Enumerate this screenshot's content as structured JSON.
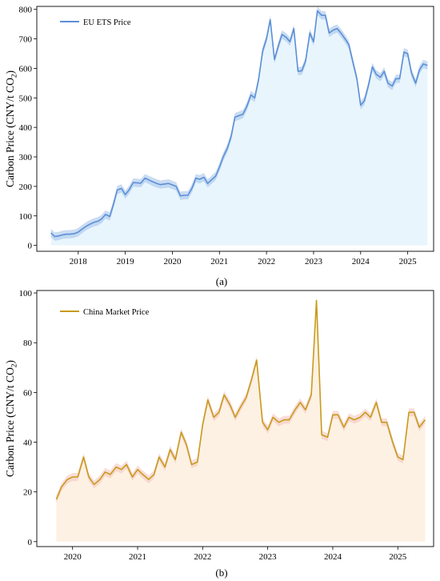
{
  "chart_data": [
    {
      "type": "area",
      "caption": "(a)",
      "ylabel": "Carbon Price (CNY/t CO2)",
      "ylabel_main": "Carbon Price (CNY/t CO",
      "ylabel_sub": "2",
      "ylabel_end": ")",
      "xlabel": "",
      "ylim": [
        -20,
        810
      ],
      "xlim": [
        2017.12,
        2025.55
      ],
      "yticks": [
        0,
        100,
        200,
        300,
        400,
        500,
        600,
        700,
        800
      ],
      "xticks": [
        "2018",
        "2019",
        "2020",
        "2021",
        "2022",
        "2023",
        "2024",
        "2025"
      ],
      "grid": false,
      "legend_position": "top-left",
      "line_color": "#5b8fd6",
      "band_color": "#9fc0ea",
      "fill_color": "#e9f5fc",
      "series": [
        {
          "name": "EU ETS Price",
          "x": [
            2017.42,
            2017.5,
            2017.58,
            2017.67,
            2017.75,
            2017.83,
            2017.92,
            2018.0,
            2018.08,
            2018.17,
            2018.25,
            2018.33,
            2018.42,
            2018.5,
            2018.58,
            2018.67,
            2018.75,
            2018.83,
            2018.92,
            2019.0,
            2019.08,
            2019.17,
            2019.25,
            2019.33,
            2019.42,
            2019.5,
            2019.58,
            2019.67,
            2019.75,
            2019.83,
            2019.92,
            2020.0,
            2020.08,
            2020.17,
            2020.25,
            2020.33,
            2020.42,
            2020.5,
            2020.58,
            2020.67,
            2020.75,
            2020.83,
            2020.92,
            2021.0,
            2021.08,
            2021.17,
            2021.25,
            2021.33,
            2021.42,
            2021.5,
            2021.58,
            2021.67,
            2021.75,
            2021.83,
            2021.92,
            2022.0,
            2022.08,
            2022.17,
            2022.25,
            2022.33,
            2022.42,
            2022.5,
            2022.58,
            2022.67,
            2022.75,
            2022.83,
            2022.92,
            2023.0,
            2023.08,
            2023.17,
            2023.25,
            2023.33,
            2023.42,
            2023.5,
            2023.58,
            2023.67,
            2023.75,
            2023.83,
            2023.92,
            2024.0,
            2024.08,
            2024.17,
            2024.25,
            2024.33,
            2024.42,
            2024.5,
            2024.58,
            2024.67,
            2024.75,
            2024.83,
            2024.92,
            2025.0,
            2025.08,
            2025.17,
            2025.25,
            2025.33,
            2025.42
          ],
          "values": [
            42,
            30,
            32,
            36,
            38,
            38,
            40,
            45,
            55,
            65,
            72,
            78,
            82,
            90,
            105,
            98,
            140,
            188,
            193,
            172,
            188,
            213,
            212,
            211,
            228,
            222,
            216,
            210,
            206,
            208,
            210,
            205,
            200,
            168,
            170,
            170,
            195,
            228,
            224,
            231,
            210,
            222,
            235,
            265,
            300,
            330,
            370,
            435,
            440,
            445,
            470,
            510,
            500,
            560,
            660,
            700,
            765,
            630,
            675,
            715,
            705,
            690,
            735,
            590,
            592,
            625,
            720,
            690,
            795,
            780,
            780,
            720,
            730,
            735,
            720,
            700,
            680,
            625,
            565,
            475,
            490,
            545,
            605,
            580,
            570,
            590,
            550,
            540,
            565,
            565,
            655,
            650,
            585,
            550,
            595,
            615,
            610
          ],
          "band": 14
        }
      ]
    },
    {
      "type": "area",
      "caption": "(b)",
      "ylabel": "Carbon Price (CNY/t CO2)",
      "ylabel_main": "Carbon Price (CNY/t CO",
      "ylabel_sub": "2",
      "ylabel_end": ")",
      "xlabel": "",
      "ylim": [
        -2,
        101
      ],
      "xlim": [
        2019.45,
        2025.55
      ],
      "yticks": [
        0,
        20,
        40,
        60,
        80,
        100
      ],
      "xticks": [
        "2020",
        "2021",
        "2022",
        "2023",
        "2024",
        "2025"
      ],
      "grid": false,
      "legend_position": "top-left",
      "line_color": "#c89a1c",
      "band_color": "#f2c2ba",
      "fill_color": "#fdf1e4",
      "series": [
        {
          "name": "China Market Price",
          "x": [
            2019.75,
            2019.83,
            2019.92,
            2020.0,
            2020.08,
            2020.17,
            2020.25,
            2020.33,
            2020.42,
            2020.5,
            2020.58,
            2020.67,
            2020.75,
            2020.83,
            2020.92,
            2021.0,
            2021.08,
            2021.17,
            2021.25,
            2021.33,
            2021.42,
            2021.5,
            2021.58,
            2021.67,
            2021.75,
            2021.83,
            2021.92,
            2022.0,
            2022.08,
            2022.17,
            2022.25,
            2022.33,
            2022.42,
            2022.5,
            2022.58,
            2022.67,
            2022.75,
            2022.83,
            2022.92,
            2023.0,
            2023.08,
            2023.17,
            2023.25,
            2023.33,
            2023.42,
            2023.5,
            2023.58,
            2023.67,
            2023.75,
            2023.83,
            2023.92,
            2024.0,
            2024.08,
            2024.17,
            2024.25,
            2024.33,
            2024.42,
            2024.5,
            2024.58,
            2024.67,
            2024.75,
            2024.83,
            2024.92,
            2025.0,
            2025.08,
            2025.17,
            2025.25,
            2025.33,
            2025.42
          ],
          "values": [
            17,
            22,
            25,
            26,
            26,
            34,
            26,
            23,
            25,
            28,
            27,
            30,
            29,
            31,
            26,
            29,
            27,
            25,
            27,
            34,
            30,
            37,
            33,
            44,
            39,
            31,
            32,
            47,
            57,
            50,
            52,
            59,
            55,
            50,
            54,
            58,
            65,
            73,
            48,
            45,
            50,
            48,
            49,
            49,
            53,
            56,
            53,
            59,
            97,
            43,
            42,
            51,
            51,
            46,
            50,
            49,
            50,
            52,
            50,
            56,
            48,
            48,
            40,
            34,
            33,
            52,
            52,
            46,
            49
          ],
          "band": 1.6
        }
      ]
    }
  ]
}
